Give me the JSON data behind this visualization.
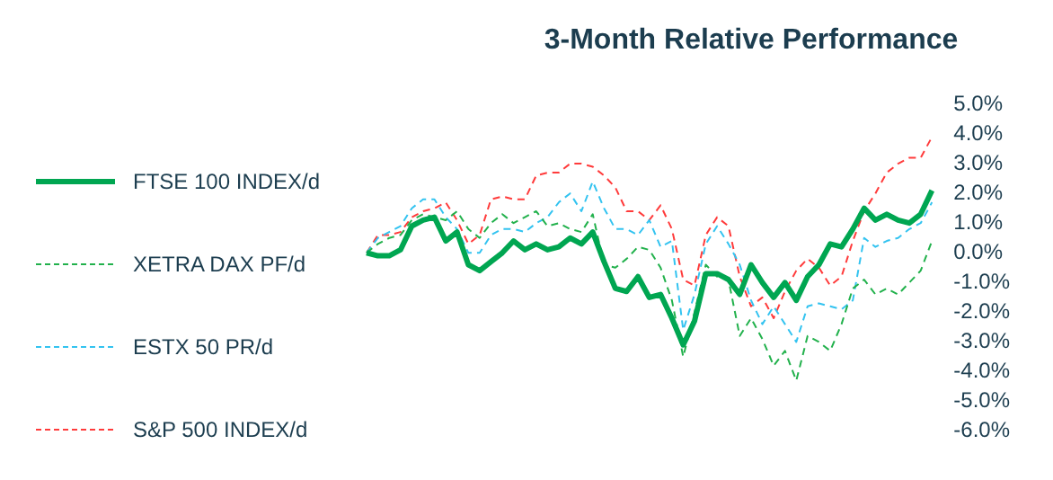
{
  "chart_data": {
    "type": "line",
    "title": "3-Month Relative Performance",
    "categories": [
      null,
      null,
      null,
      null,
      null,
      null,
      null,
      null,
      null,
      null,
      null,
      null,
      null,
      null,
      null,
      null,
      null,
      null,
      null,
      null,
      null,
      null,
      null,
      null,
      null,
      null,
      null,
      null,
      null,
      null,
      null,
      null,
      null,
      null,
      null,
      null,
      null,
      null,
      null,
      null,
      null,
      null,
      null,
      null,
      null,
      null,
      null,
      null,
      null,
      null,
      null
    ],
    "series": [
      {
        "name": "FTSE 100 INDEX/d",
        "color": "#00a651",
        "line_style": "solid",
        "values": [
          0.0,
          -0.1,
          -0.1,
          0.1,
          0.9,
          1.1,
          1.2,
          0.4,
          0.7,
          -0.4,
          -0.6,
          -0.3,
          0.0,
          0.4,
          0.1,
          0.3,
          0.1,
          0.2,
          0.5,
          0.3,
          0.7,
          -0.3,
          -1.2,
          -1.3,
          -0.8,
          -1.5,
          -1.4,
          -2.2,
          -3.1,
          -2.3,
          -0.7,
          -0.7,
          -0.9,
          -1.4,
          -0.4,
          -1.0,
          -1.5,
          -1.0,
          -1.6,
          -0.8,
          -0.4,
          0.3,
          0.2,
          0.8,
          1.5,
          1.1,
          1.3,
          1.1,
          1.0,
          1.3,
          2.1
        ]
      },
      {
        "name": "XETRA DAX PF/d",
        "color": "#22b14c",
        "line_style": "dashed",
        "values": [
          0.0,
          0.3,
          0.5,
          0.6,
          1.1,
          1.3,
          1.2,
          1.1,
          1.4,
          0.8,
          0.5,
          1.0,
          1.3,
          1.0,
          1.2,
          1.4,
          0.9,
          1.0,
          0.8,
          0.7,
          1.3,
          -0.4,
          -0.5,
          -0.2,
          0.2,
          0.1,
          -0.5,
          -1.6,
          -3.5,
          -2.0,
          -0.4,
          -0.8,
          -0.9,
          -2.8,
          -2.2,
          -2.9,
          -3.8,
          -3.3,
          -4.3,
          -2.8,
          -3.0,
          -3.3,
          -2.4,
          -1.2,
          -0.9,
          -1.4,
          -1.2,
          -1.4,
          -1.0,
          -0.6,
          0.4
        ]
      },
      {
        "name": "ESTX 50 PR/d",
        "color": "#33c3f0",
        "line_style": "dashed",
        "values": [
          0.0,
          0.5,
          0.7,
          0.9,
          1.5,
          1.8,
          1.8,
          1.2,
          0.8,
          0.0,
          0.0,
          0.6,
          0.8,
          0.8,
          0.7,
          1.0,
          1.2,
          1.7,
          2.0,
          1.4,
          2.4,
          1.5,
          0.8,
          0.8,
          0.6,
          1.1,
          0.2,
          0.4,
          -2.6,
          -1.4,
          0.3,
          0.9,
          0.3,
          -0.4,
          -1.6,
          -2.4,
          -1.8,
          -2.4,
          -3.0,
          -1.8,
          -1.7,
          -1.8,
          -1.9,
          -1.6,
          0.5,
          0.2,
          0.4,
          0.5,
          0.8,
          1.0,
          1.7
        ]
      },
      {
        "name": "S&P 500 INDEX/d",
        "color": "#ff3b3b",
        "line_style": "dashed",
        "values": [
          0.0,
          0.6,
          0.6,
          0.7,
          1.2,
          1.4,
          1.5,
          1.7,
          1.1,
          0.3,
          0.6,
          1.8,
          1.9,
          1.8,
          1.8,
          2.6,
          2.7,
          2.7,
          3.0,
          3.0,
          2.9,
          2.6,
          2.2,
          1.4,
          1.4,
          1.1,
          1.6,
          0.8,
          -0.9,
          -1.1,
          0.6,
          1.2,
          0.9,
          -0.8,
          -1.8,
          -1.5,
          -2.2,
          -1.3,
          -0.6,
          -0.2,
          -0.5,
          -1.1,
          -0.8,
          0.4,
          1.4,
          2.0,
          2.7,
          3.0,
          3.2,
          3.2,
          3.9
        ]
      }
    ],
    "ylim": [
      -6,
      5
    ],
    "yticks": [
      {
        "value": 5,
        "label": "5.0%"
      },
      {
        "value": 4,
        "label": "4.0%"
      },
      {
        "value": 3,
        "label": "3.0%"
      },
      {
        "value": 2,
        "label": "2.0%"
      },
      {
        "value": 1,
        "label": "1.0%"
      },
      {
        "value": 0,
        "label": "0.0%"
      },
      {
        "value": -1,
        "label": "-1.0%"
      },
      {
        "value": -2,
        "label": "-2.0%"
      },
      {
        "value": -3,
        "label": "-3.0%"
      },
      {
        "value": -4,
        "label": "-4.0%"
      },
      {
        "value": -5,
        "label": "-5.0%"
      },
      {
        "value": -6,
        "label": "-6.0%"
      }
    ],
    "tick_labels": "y",
    "grid": false,
    "legend": "left",
    "marker": "none"
  }
}
